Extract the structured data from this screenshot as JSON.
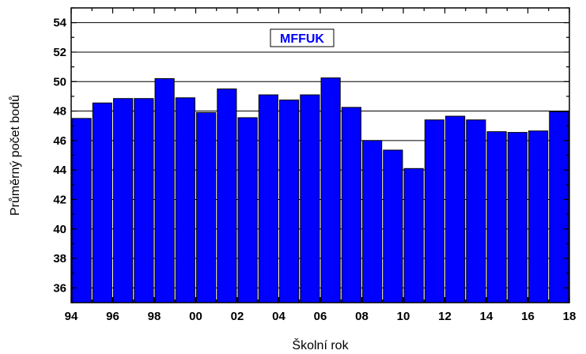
{
  "chart_data": {
    "type": "bar",
    "title": "",
    "xlabel": "Školní rok",
    "ylabel": "Průměrný počet bodů",
    "legend": [
      "MFFUK"
    ],
    "legend_position": "top-center",
    "grid": "horizontal",
    "bar_color": "#0000ff",
    "ylim": [
      35,
      55
    ],
    "xlim": [
      94,
      118
    ],
    "x_tick_values": [
      94,
      96,
      98,
      100,
      102,
      104,
      106,
      108,
      110,
      112,
      114,
      116,
      118
    ],
    "x_tick_labels": [
      "94",
      "96",
      "98",
      "00",
      "02",
      "04",
      "06",
      "08",
      "10",
      "12",
      "14",
      "16",
      "18"
    ],
    "y_tick_values": [
      36,
      38,
      40,
      42,
      44,
      46,
      48,
      50,
      52,
      54
    ],
    "y_tick_labels": [
      "36",
      "38",
      "40",
      "42",
      "44",
      "46",
      "48",
      "50",
      "52",
      "54"
    ],
    "series": [
      {
        "name": "MFFUK",
        "x": [
          94,
          95,
          96,
          97,
          98,
          99,
          100,
          101,
          102,
          103,
          104,
          105,
          106,
          107,
          108,
          109,
          110,
          111,
          112,
          113,
          114,
          115,
          116,
          117
        ],
        "values": [
          47.5,
          48.55,
          48.85,
          48.85,
          50.2,
          48.9,
          47.9,
          49.5,
          47.55,
          49.1,
          48.75,
          49.1,
          50.25,
          48.25,
          46.0,
          45.35,
          44.1,
          47.4,
          47.65,
          47.4,
          46.6,
          46.55,
          46.65,
          47.95
        ]
      }
    ]
  }
}
